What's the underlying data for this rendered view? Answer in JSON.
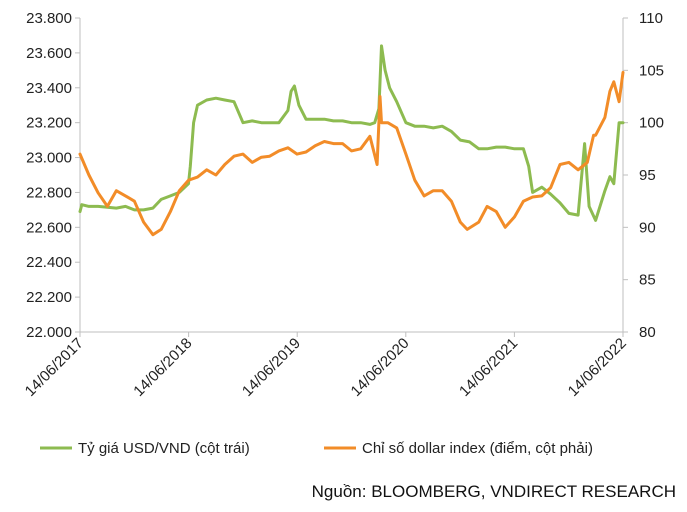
{
  "chart_data": {
    "type": "line",
    "left_axis": {
      "min": 22000,
      "max": 23800,
      "ticks": [
        "22.000",
        "22.200",
        "22.400",
        "22.600",
        "22.800",
        "23.000",
        "23.200",
        "23.400",
        "23.600",
        "23.800"
      ]
    },
    "right_axis": {
      "min": 80,
      "max": 110,
      "ticks": [
        "80",
        "85",
        "90",
        "95",
        "100",
        "105",
        "110"
      ]
    },
    "x_axis": {
      "start": "2017-06-14",
      "end": "2022-06-14",
      "ticks": [
        "14/06/2017",
        "14/06/2018",
        "14/06/2019",
        "14/06/2020",
        "14/06/2021",
        "14/06/2022"
      ]
    },
    "grid": false,
    "legend_position": "bottom",
    "series": [
      {
        "name": "Tỷ giá USD/VND (cột trái)",
        "axis": "left",
        "color": "#8dbb50",
        "x": [
          "2017-06-14",
          "2017-06-20",
          "2017-07-14",
          "2017-08-14",
          "2017-09-14",
          "2017-10-14",
          "2017-11-14",
          "2017-12-14",
          "2018-01-14",
          "2018-02-14",
          "2018-03-14",
          "2018-04-14",
          "2018-05-14",
          "2018-06-14",
          "2018-06-20",
          "2018-07-01",
          "2018-07-14",
          "2018-08-14",
          "2018-09-14",
          "2018-10-14",
          "2018-11-14",
          "2018-12-14",
          "2019-01-14",
          "2019-02-14",
          "2019-03-14",
          "2019-04-14",
          "2019-05-14",
          "2019-05-25",
          "2019-06-05",
          "2019-06-20",
          "2019-07-14",
          "2019-08-14",
          "2019-09-14",
          "2019-10-14",
          "2019-11-14",
          "2019-12-14",
          "2020-01-14",
          "2020-02-14",
          "2020-03-01",
          "2020-03-15",
          "2020-03-24",
          "2020-04-05",
          "2020-04-20",
          "2020-05-14",
          "2020-06-14",
          "2020-07-14",
          "2020-08-14",
          "2020-09-14",
          "2020-10-14",
          "2020-11-14",
          "2020-12-14",
          "2021-01-14",
          "2021-02-14",
          "2021-03-14",
          "2021-04-14",
          "2021-05-14",
          "2021-06-14",
          "2021-07-14",
          "2021-08-01",
          "2021-08-14",
          "2021-09-14",
          "2021-10-14",
          "2021-11-14",
          "2021-12-14",
          "2022-01-14",
          "2022-02-05",
          "2022-02-20",
          "2022-03-14",
          "2022-04-14",
          "2022-05-01",
          "2022-05-14",
          "2022-06-01",
          "2022-06-14"
        ],
        "values": [
          22690,
          22730,
          22720,
          22720,
          22715,
          22710,
          22720,
          22700,
          22700,
          22710,
          22760,
          22780,
          22800,
          22850,
          22950,
          23200,
          23300,
          23330,
          23340,
          23330,
          23320,
          23200,
          23210,
          23200,
          23200,
          23200,
          23270,
          23380,
          23410,
          23300,
          23220,
          23220,
          23220,
          23210,
          23210,
          23200,
          23200,
          23190,
          23200,
          23280,
          23640,
          23500,
          23400,
          23320,
          23200,
          23180,
          23180,
          23170,
          23180,
          23150,
          23100,
          23090,
          23050,
          23050,
          23060,
          23060,
          23050,
          23050,
          22950,
          22800,
          22830,
          22790,
          22740,
          22680,
          22670,
          23080,
          22720,
          22640,
          22810,
          22890,
          22850,
          23200,
          23200
        ]
      },
      {
        "name": "Chỉ số dollar index (điểm, cột phải)",
        "axis": "right",
        "color": "#f28c28",
        "x": [
          "2017-06-14",
          "2017-07-14",
          "2017-08-14",
          "2017-09-14",
          "2017-10-14",
          "2017-11-14",
          "2017-12-14",
          "2018-01-14",
          "2018-02-14",
          "2018-03-14",
          "2018-04-14",
          "2018-05-14",
          "2018-06-14",
          "2018-07-14",
          "2018-08-14",
          "2018-09-14",
          "2018-10-14",
          "2018-11-14",
          "2018-12-14",
          "2019-01-14",
          "2019-02-14",
          "2019-03-14",
          "2019-04-14",
          "2019-05-14",
          "2019-06-14",
          "2019-07-14",
          "2019-08-14",
          "2019-09-14",
          "2019-10-14",
          "2019-11-14",
          "2019-12-14",
          "2020-01-14",
          "2020-02-14",
          "2020-03-09",
          "2020-03-19",
          "2020-03-24",
          "2020-04-14",
          "2020-05-14",
          "2020-06-14",
          "2020-07-14",
          "2020-08-14",
          "2020-09-14",
          "2020-10-14",
          "2020-11-14",
          "2020-12-14",
          "2021-01-06",
          "2021-02-14",
          "2021-03-14",
          "2021-04-14",
          "2021-05-14",
          "2021-06-14",
          "2021-07-14",
          "2021-08-14",
          "2021-09-14",
          "2021-10-14",
          "2021-11-14",
          "2021-12-14",
          "2022-01-14",
          "2022-02-14",
          "2022-03-07",
          "2022-03-14",
          "2022-04-14",
          "2022-05-01",
          "2022-05-14",
          "2022-06-01",
          "2022-06-14"
        ],
        "values": [
          97.0,
          95.0,
          93.3,
          92.0,
          93.5,
          93.0,
          92.5,
          90.5,
          89.3,
          89.8,
          91.5,
          93.5,
          94.5,
          94.8,
          95.5,
          95.0,
          96.0,
          96.8,
          97.0,
          96.2,
          96.7,
          96.8,
          97.3,
          97.6,
          97.0,
          97.2,
          97.8,
          98.2,
          98.0,
          98.0,
          97.3,
          97.5,
          98.7,
          96.0,
          102.5,
          100.0,
          100.0,
          99.5,
          97.0,
          94.5,
          93.0,
          93.5,
          93.5,
          92.5,
          90.5,
          89.8,
          90.5,
          92.0,
          91.5,
          90.0,
          91.0,
          92.5,
          92.9,
          93.0,
          93.8,
          96.0,
          96.2,
          95.5,
          96.2,
          98.8,
          98.8,
          100.5,
          103.0,
          103.9,
          102.0,
          104.8
        ]
      }
    ]
  },
  "source_text": "Nguồn: BLOOMBERG, VNDIRECT RESEARCH"
}
